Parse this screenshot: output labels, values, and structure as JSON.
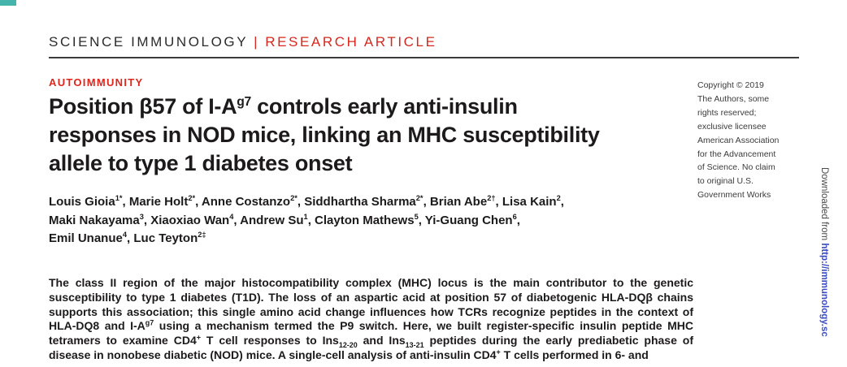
{
  "masthead": {
    "journal": "SCIENCE IMMUNOLOGY",
    "separator": "|",
    "article_type": "RESEARCH ARTICLE"
  },
  "section_label": "AUTOIMMUNITY",
  "title": {
    "line1": [
      "Position β57 of I-A",
      {
        "t": "g7",
        "v": "sup"
      },
      " controls early anti-insulin"
    ],
    "line2": [
      "responses in NOD mice, linking an MHC susceptibility"
    ],
    "line3": [
      "allele to type 1 diabetes onset"
    ]
  },
  "authors": {
    "line1": [
      "Louis Gioia",
      {
        "t": "1*",
        "v": "sup"
      },
      ", Marie Holt",
      {
        "t": "2*",
        "v": "sup"
      },
      ", Anne Costanzo",
      {
        "t": "2*",
        "v": "sup"
      },
      ", Siddhartha Sharma",
      {
        "t": "2*",
        "v": "sup"
      },
      ", Brian Abe",
      {
        "t": "2†",
        "v": "sup"
      },
      ", Lisa Kain",
      {
        "t": "2",
        "v": "sup"
      },
      ","
    ],
    "line2": [
      "Maki Nakayama",
      {
        "t": "3",
        "v": "sup"
      },
      ", Xiaoxiao Wan",
      {
        "t": "4",
        "v": "sup"
      },
      ", Andrew Su",
      {
        "t": "1",
        "v": "sup"
      },
      ", Clayton Mathews",
      {
        "t": "5",
        "v": "sup"
      },
      ", Yi-Guang Chen",
      {
        "t": "6",
        "v": "sup"
      },
      ","
    ],
    "line3": [
      "Emil Unanue",
      {
        "t": "4",
        "v": "sup"
      },
      ", Luc Teyton",
      {
        "t": "2‡",
        "v": "sup"
      }
    ]
  },
  "abstract_rich": [
    "The class II region of the major histocompatibility complex (MHC) locus is the main contributor to the genetic susceptibility to type 1 diabetes (T1D). The loss of an aspartic acid at position 57 of diabetogenic HLA-DQβ chains supports this association; this single amino acid change influences how TCRs recognize peptides in the context of HLA-DQ8 and I-A",
    {
      "t": "g7",
      "v": "sup"
    },
    " using a mechanism termed the P9 switch. Here, we built register-specific insulin peptide MHC tetramers to examine CD4",
    {
      "t": "+",
      "v": "sup"
    },
    " T cell responses to Ins",
    {
      "t": "12-20",
      "v": "sub"
    },
    " and Ins",
    {
      "t": "13-21",
      "v": "sub"
    },
    " peptides during the early prediabetic phase of disease in nonobese diabetic (NOD) mice. A single-cell analysis of anti-insulin CD4",
    {
      "t": "+",
      "v": "sup"
    },
    " T cells performed in 6- and"
  ],
  "copyright_notice": "Copyright © 2019\nThe Authors, some\nrights reserved;\nexclusive licensee\nAmerican Association\nfor the Advancement\nof Science. No claim\nto original U.S.\nGovernment Works",
  "download_watermark": {
    "prefix": "Downloaded from ",
    "link_text": "http://immunology.sc"
  },
  "colors": {
    "accent_red": "#d6281e",
    "section_red": "#e0261c",
    "link_blue": "#3b4cc0",
    "corner_teal": "#45b5ab",
    "text_dark": "#1c1a1a"
  }
}
